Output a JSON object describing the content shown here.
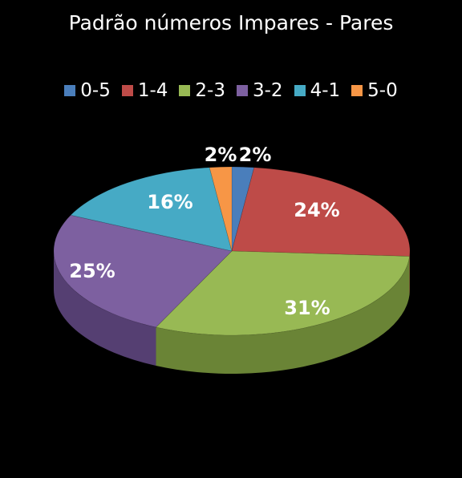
{
  "chart_data": {
    "type": "pie",
    "title": "Padrão números Impares - Pares",
    "legend_position": "top",
    "categories": [
      "0-5",
      "1-4",
      "2-3",
      "3-2",
      "4-1",
      "5-0"
    ],
    "values": [
      2,
      24,
      31,
      25,
      16,
      2
    ],
    "labels": [
      "2%",
      "24%",
      "31%",
      "25%",
      "16%",
      "2%"
    ],
    "colors": [
      "#4a7ebb",
      "#be4b48",
      "#98b954",
      "#7d60a0",
      "#46aac5",
      "#f79646"
    ],
    "side_colors": [
      "#2e5582",
      "#8a302e",
      "#6a8436",
      "#553f72",
      "#2c7b90",
      "#b86a26"
    ],
    "three_d": true
  }
}
